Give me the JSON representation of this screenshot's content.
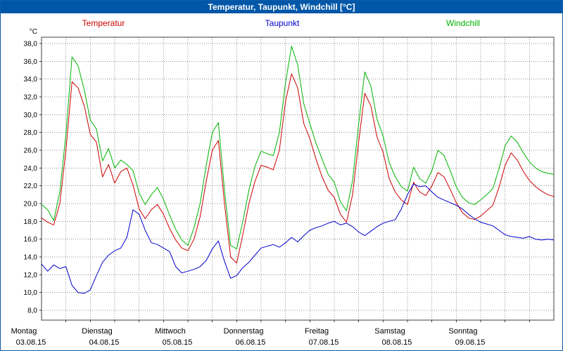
{
  "window": {
    "title": "Temperatur, Taupunkt, Windchill [°C]",
    "titlebar_color": "#0057a8"
  },
  "legend": [
    {
      "label": "Temperatur",
      "color": "#cc0000"
    },
    {
      "label": "Taupunkt",
      "color": "#0000cc"
    },
    {
      "label": "Windchill",
      "color": "#00b400"
    }
  ],
  "chart_data": {
    "type": "line",
    "title": "Temperatur, Taupunkt, Windchill [°C]",
    "xlabel": "",
    "ylabel": "°C",
    "ylim": [
      8,
      38
    ],
    "ytick_step": 2,
    "ytick_labels": [
      "38,0",
      "36,0",
      "34,0",
      "32,0",
      "30,0",
      "28,0",
      "26,0",
      "24,0",
      "22,0",
      "20,0",
      "18,0",
      "16,0",
      "14,0",
      "12,0",
      "10,0",
      "8,0"
    ],
    "grid": true,
    "legend_position": "top",
    "x_range_hours": [
      0,
      168
    ],
    "sample_interval_hours": 2,
    "x_days": [
      {
        "name": "Montag",
        "date": "03.08.15"
      },
      {
        "name": "Dienstag",
        "date": "04.08.15"
      },
      {
        "name": "Mittwoch",
        "date": "05.08.15"
      },
      {
        "name": "Donnerstag",
        "date": "06.08.15"
      },
      {
        "name": "Freitag",
        "date": "07.08.15"
      },
      {
        "name": "Samstag",
        "date": "08.08.15"
      },
      {
        "name": "Sonntag",
        "date": "09.08.15"
      }
    ],
    "series": [
      {
        "name": "Temperatur",
        "color": "#cc0000",
        "values": [
          18.4,
          17.9,
          17.6,
          20.0,
          26.0,
          33.7,
          33.0,
          31.0,
          27.8,
          26.9,
          23.0,
          24.4,
          22.3,
          23.6,
          24.0,
          22.1,
          19.4,
          18.3,
          19.3,
          19.9,
          18.8,
          17.2,
          15.9,
          15.0,
          14.7,
          16.0,
          18.5,
          22.5,
          26.0,
          27.1,
          20.0,
          14.0,
          13.3,
          16.5,
          20.0,
          22.5,
          24.3,
          24.1,
          23.8,
          26.0,
          31.5,
          34.6,
          33.0,
          29.0,
          27.3,
          25.0,
          23.0,
          21.5,
          20.7,
          18.8,
          17.9,
          21.0,
          27.0,
          32.4,
          31.0,
          27.5,
          25.8,
          22.8,
          21.3,
          20.4,
          19.9,
          22.4,
          21.3,
          20.9,
          22.0,
          23.5,
          23.0,
          21.6,
          20.1,
          19.0,
          18.4,
          18.2,
          18.6,
          19.2,
          19.8,
          21.8,
          24.3,
          25.7,
          24.9,
          23.6,
          22.6,
          21.9,
          21.4,
          21.0,
          20.8
        ]
      },
      {
        "name": "Taupunkt",
        "color": "#0000cc",
        "values": [
          13.2,
          12.4,
          13.1,
          12.7,
          12.9,
          10.8,
          10.0,
          9.9,
          10.3,
          11.9,
          13.4,
          14.2,
          14.7,
          15.0,
          16.2,
          19.3,
          18.8,
          17.0,
          15.6,
          15.4,
          15.0,
          14.6,
          12.9,
          12.2,
          12.4,
          12.6,
          12.9,
          13.6,
          14.9,
          15.8,
          13.5,
          11.6,
          11.9,
          12.8,
          13.4,
          14.2,
          15.0,
          15.2,
          15.4,
          15.1,
          15.6,
          16.2,
          15.7,
          16.4,
          17.0,
          17.3,
          17.5,
          17.8,
          18.0,
          17.6,
          17.8,
          17.4,
          16.8,
          16.4,
          16.9,
          17.4,
          17.8,
          18.0,
          18.2,
          19.4,
          21.0,
          22.2,
          21.9,
          22.0,
          21.3,
          20.7,
          20.4,
          20.1,
          19.8,
          19.4,
          18.8,
          18.3,
          17.9,
          17.7,
          17.5,
          17.0,
          16.5,
          16.3,
          16.2,
          16.1,
          16.3,
          16.0,
          15.9,
          16.0,
          15.9
        ]
      },
      {
        "name": "Windchill",
        "color": "#00b400",
        "values": [
          19.9,
          19.3,
          18.1,
          21.3,
          27.8,
          36.5,
          35.5,
          32.8,
          29.4,
          28.4,
          24.8,
          26.2,
          24.0,
          24.9,
          24.4,
          23.7,
          21.2,
          19.9,
          21.0,
          21.8,
          20.5,
          18.7,
          17.1,
          15.9,
          15.3,
          17.3,
          20.0,
          24.3,
          28.0,
          29.1,
          21.5,
          15.3,
          14.9,
          18.0,
          21.5,
          24.2,
          25.9,
          25.6,
          25.4,
          28.0,
          33.6,
          37.7,
          35.6,
          31.2,
          29.0,
          26.8,
          25.0,
          23.3,
          22.4,
          20.2,
          19.2,
          22.6,
          29.0,
          34.8,
          33.2,
          29.5,
          27.6,
          24.6,
          23.0,
          21.9,
          21.4,
          24.1,
          22.8,
          22.3,
          23.7,
          26.0,
          25.4,
          23.7,
          21.9,
          20.7,
          20.1,
          19.9,
          20.4,
          21.0,
          21.7,
          23.9,
          26.5,
          27.6,
          26.9,
          25.7,
          24.7,
          24.0,
          23.6,
          23.4,
          23.3
        ]
      }
    ]
  }
}
